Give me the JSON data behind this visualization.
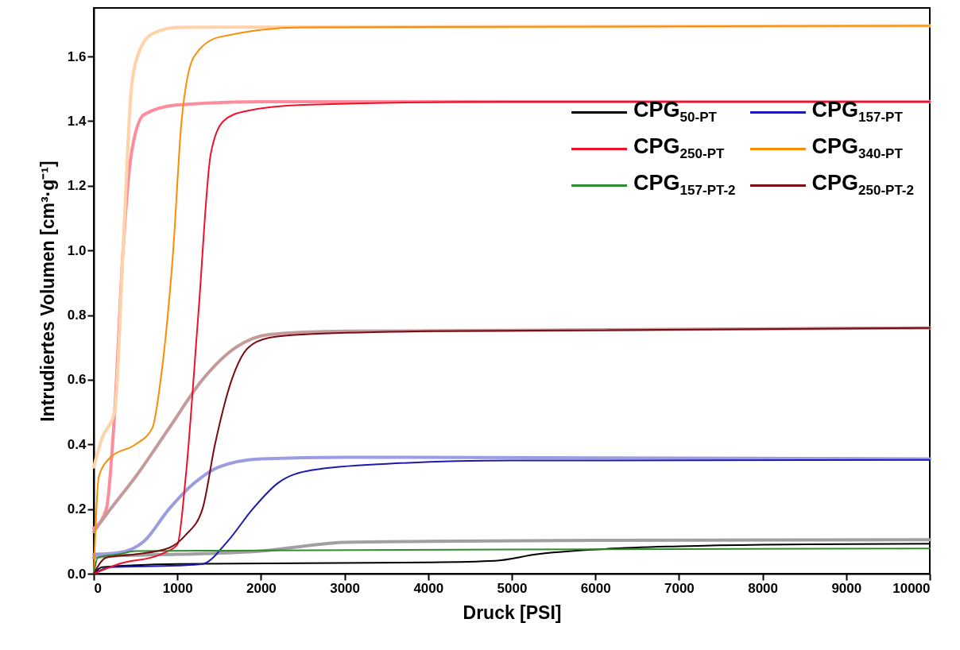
{
  "chart_data": {
    "type": "line",
    "xlabel": "Druck [PSI]",
    "ylabel": "Intrudiertes Volumen [cm³·g⁻¹]",
    "xlim": [
      0,
      10000
    ],
    "ylim": [
      0,
      1.75
    ],
    "xticks": [
      0,
      1000,
      2000,
      3000,
      4000,
      5000,
      6000,
      7000,
      8000,
      9000,
      10000
    ],
    "yticks": [
      {
        "value": 0,
        "label": "0.0"
      },
      0.2,
      0.4,
      0.6,
      0.8,
      {
        "value": 1,
        "label": "1.0"
      },
      1.2,
      1.4,
      1.6
    ],
    "grid": false,
    "legend": "top right",
    "marker": "none",
    "line_style": "solid",
    "series": [
      {
        "color": "#a0a0a0",
        "x": [
          0,
          200,
          1000,
          2000,
          2500,
          3000,
          4000,
          6000,
          10000
        ],
        "values": [
          0.05,
          0.055,
          0.06,
          0.07,
          0.085,
          0.097,
          0.1,
          0.103,
          0.105
        ]
      },
      {
        "color": "#9c9ce0",
        "x": [
          0,
          300,
          600,
          900,
          1200,
          1500,
          2000,
          3000,
          10000
        ],
        "values": [
          0.06,
          0.065,
          0.1,
          0.2,
          0.28,
          0.33,
          0.355,
          0.36,
          0.355
        ]
      },
      {
        "color": "#ff8c9c",
        "x": [
          0,
          150,
          250,
          350,
          450,
          600,
          1000,
          2000,
          10000
        ],
        "values": [
          0.14,
          0.2,
          0.5,
          1.0,
          1.3,
          1.42,
          1.45,
          1.46,
          1.46
        ]
      },
      {
        "color": "#ffd2a8",
        "x": [
          0,
          100,
          250,
          350,
          450,
          550,
          700,
          1000,
          10000
        ],
        "values": [
          0.33,
          0.42,
          0.5,
          1.0,
          1.5,
          1.62,
          1.67,
          1.69,
          1.695
        ]
      },
      {
        "color": "#c49a9a",
        "x": [
          0,
          200,
          500,
          900,
          1300,
          1700,
          2100,
          3000,
          10000
        ],
        "values": [
          0.13,
          0.2,
          0.3,
          0.45,
          0.6,
          0.7,
          0.74,
          0.75,
          0.76
        ]
      },
      {
        "name": "CPG$_{50-PT}$",
        "color": "#000000",
        "x": [
          0,
          100,
          1000,
          4000,
          4800,
          5300,
          6000,
          7000,
          8000,
          10000
        ],
        "values": [
          0,
          0.02,
          0.03,
          0.035,
          0.04,
          0.06,
          0.075,
          0.085,
          0.09,
          0.093
        ]
      },
      {
        "name": "CPG$_{157-PT}$",
        "color": "#1a1ab0",
        "x": [
          0,
          200,
          1000,
          1300,
          1600,
          1900,
          2200,
          2600,
          3500,
          5000,
          10000
        ],
        "values": [
          0,
          0.02,
          0.025,
          0.03,
          0.1,
          0.2,
          0.28,
          0.32,
          0.34,
          0.35,
          0.352
        ]
      },
      {
        "name": "CPG$_{250-PT}$",
        "color": "#f0102a",
        "x": [
          0,
          300,
          800,
          1000,
          1100,
          1250,
          1400,
          1550,
          1800,
          2500,
          5000,
          10000
        ],
        "values": [
          0,
          0.03,
          0.06,
          0.09,
          0.3,
          0.8,
          1.3,
          1.4,
          1.43,
          1.45,
          1.46,
          1.46
        ]
      },
      {
        "name": "CPG$_{340-PT}$",
        "color": "#ff8c00",
        "x": [
          0,
          60,
          200,
          500,
          700,
          800,
          950,
          1050,
          1200,
          1500,
          2500,
          10000
        ],
        "values": [
          0,
          0.3,
          0.36,
          0.4,
          0.45,
          0.6,
          1.0,
          1.4,
          1.6,
          1.66,
          1.69,
          1.695
        ]
      },
      {
        "name": "CPG$_{157-PT-2}$",
        "color": "#2e8b2e",
        "x": [
          0,
          50,
          300,
          500,
          2000,
          5000,
          10000
        ],
        "values": [
          0,
          0.05,
          0.06,
          0.07,
          0.072,
          0.075,
          0.078
        ]
      },
      {
        "name": "CPG$_{250-PT-2}$",
        "color": "#7a0a14",
        "x": [
          0,
          150,
          500,
          900,
          1100,
          1300,
          1450,
          1650,
          1850,
          2100,
          2500,
          4000,
          10000
        ],
        "values": [
          0,
          0.05,
          0.06,
          0.08,
          0.12,
          0.2,
          0.4,
          0.6,
          0.7,
          0.73,
          0.74,
          0.75,
          0.76
        ]
      }
    ]
  }
}
